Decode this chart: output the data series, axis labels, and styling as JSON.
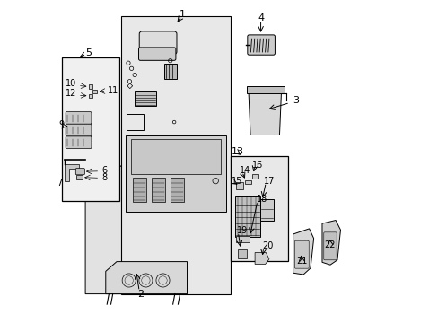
{
  "bg_color": "#ffffff",
  "line_color": "#000000",
  "light_gray": "#cccccc",
  "mid_gray": "#aaaaaa",
  "fig_width": 4.89,
  "fig_height": 3.6
}
